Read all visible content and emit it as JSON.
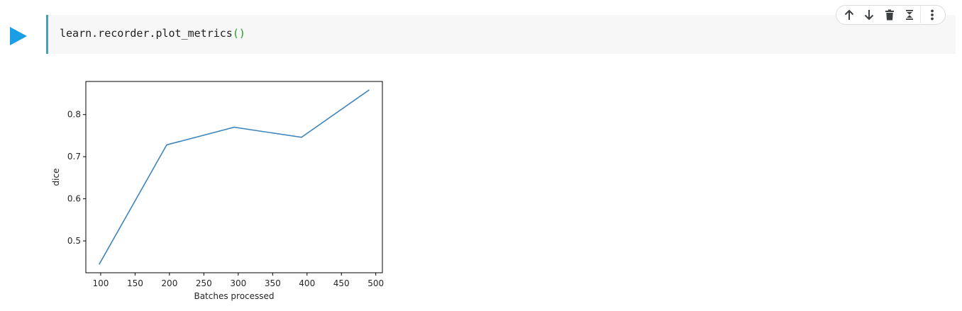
{
  "cell": {
    "code_prefix": "learn.recorder.plot_metrics",
    "code_parens": "()"
  },
  "toolbar": {
    "icons": [
      "arrow-up-icon",
      "arrow-down-icon",
      "trash-icon",
      "collapse-icon",
      "more-vert-icon"
    ]
  },
  "colors": {
    "run_button": "#1a9ee6",
    "cell_border": "#46a0b8",
    "line": "#3f86bd",
    "code_bg": "#f7f7f7"
  },
  "chart_data": {
    "type": "line",
    "xlabel": "Batches processed",
    "ylabel": "dice",
    "x": [
      98,
      196,
      294,
      392,
      490
    ],
    "values": [
      0.445,
      0.728,
      0.77,
      0.746,
      0.858
    ],
    "xticks": [
      100,
      150,
      200,
      250,
      300,
      350,
      400,
      450,
      500
    ],
    "yticks": [
      0.5,
      0.6,
      0.7,
      0.8
    ],
    "xlim": [
      78.4,
      509.6
    ],
    "ylim": [
      0.4244,
      0.8786
    ],
    "grid": false,
    "legend": "none"
  }
}
